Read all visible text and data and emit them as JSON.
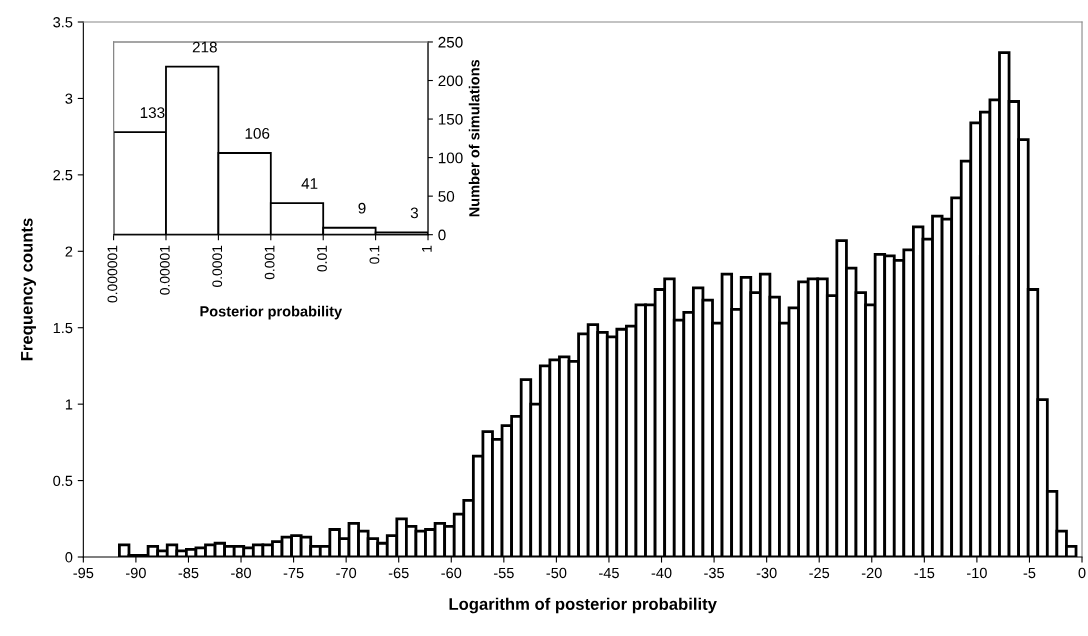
{
  "chart_data": [
    {
      "type": "histogram",
      "xlabel": "Logarithm of posterior probability",
      "ylabel": "Frequency counts",
      "bins": [
        -91.57,
        -90.66,
        -89.75,
        -88.84,
        -87.93,
        -87.02,
        -86.11,
        -85.2,
        -84.29,
        -83.38,
        -82.47,
        -81.56,
        -80.65,
        -79.74,
        -78.83,
        -77.92,
        -77.01,
        -76.1,
        -75.19,
        -74.28,
        -73.37,
        -72.46,
        -71.55,
        -70.64,
        -69.73,
        -68.82,
        -67.91,
        -67,
        -66.09,
        -65.18,
        -64.27,
        -63.36,
        -62.45,
        -61.54,
        -60.63,
        -59.72,
        -58.81,
        -57.9,
        -56.99,
        -56.08,
        -55.17,
        -54.26,
        -53.35,
        -52.44,
        -51.53,
        -50.62,
        -49.71,
        -48.8,
        -47.89,
        -46.98,
        -46.07,
        -45.16,
        -44.25,
        -43.34,
        -42.43,
        -41.52,
        -40.61,
        -39.7,
        -38.79,
        -37.88,
        -36.97,
        -36.06,
        -35.15,
        -34.24,
        -33.33,
        -32.42,
        -31.51,
        -30.6,
        -29.69,
        -28.78,
        -27.87,
        -26.96,
        -26.05,
        -25.14,
        -24.23,
        -23.32,
        -22.41,
        -21.5,
        -20.59,
        -19.68,
        -18.77,
        -17.86,
        -16.95,
        -16.04,
        -15.13,
        -14.22,
        -13.31,
        -12.4,
        -11.49,
        -10.58,
        -9.67,
        -8.76,
        -7.85,
        -6.94,
        -6.03,
        -5.12,
        -4.21,
        -3.3,
        -2.39,
        -1.48,
        -0.57
      ],
      "values": [
        0.08,
        0.01,
        0.01,
        0.07,
        0.04,
        0.08,
        0.04,
        0.05,
        0.06,
        0.08,
        0.09,
        0.07,
        0.07,
        0.06,
        0.08,
        0.08,
        0.1,
        0.13,
        0.14,
        0.13,
        0.07,
        0.07,
        0.18,
        0.12,
        0.22,
        0.17,
        0.12,
        0.09,
        0.14,
        0.25,
        0.2,
        0.17,
        0.18,
        0.22,
        0.2,
        0.28,
        0.37,
        0.66,
        0.82,
        0.77,
        0.86,
        0.92,
        1.16,
        1.0,
        1.25,
        1.29,
        1.31,
        1.28,
        1.46,
        1.52,
        1.47,
        1.44,
        1.49,
        1.51,
        1.65,
        1.65,
        1.75,
        1.82,
        1.55,
        1.6,
        1.76,
        1.68,
        1.53,
        1.85,
        1.62,
        1.83,
        1.73,
        1.85,
        1.7,
        1.53,
        1.63,
        1.8,
        1.82,
        1.82,
        1.71,
        2.07,
        1.89,
        1.73,
        1.65,
        1.98,
        1.97,
        1.94,
        2.01,
        2.16,
        2.08,
        2.23,
        2.21,
        2.35,
        2.59,
        2.84,
        2.91,
        2.99,
        3.3,
        2.98,
        2.73,
        1.75,
        1.03,
        0.43,
        0.17,
        0.07
      ],
      "color": "#ffffff",
      "xlim": [
        -95,
        0
      ],
      "xticks": [
        -95,
        -90,
        -85,
        -80,
        -75,
        -70,
        -65,
        -60,
        -55,
        -50,
        -45,
        -40,
        -35,
        -30,
        -25,
        -20,
        -15,
        -10,
        -5,
        0
      ],
      "ylim": [
        0,
        3.5
      ],
      "yticks": [
        0,
        0.5,
        1,
        1.5,
        2,
        2.5,
        3,
        3.5
      ],
      "grid": false
    },
    {
      "type": "histogram",
      "xlabel": "Posterior probability",
      "y2label": "Number of simulations",
      "bins": [
        1e-06,
        1e-05,
        0.0001,
        0.001,
        0.01,
        0.1,
        1
      ],
      "series": [
        {
          "values": [
            133,
            218,
            106,
            41,
            9,
            3
          ],
          "color": "#ffffff",
          "axis": "y2"
        }
      ],
      "data_labels": true,
      "log": "x",
      "xlim": [
        1e-06,
        1
      ],
      "xticks": [
        {
          "value": 1e-06,
          "label": "0.000001"
        },
        {
          "value": 1e-05,
          "label": "0.00001"
        },
        {
          "value": 0.0001,
          "label": "0.0001"
        },
        {
          "value": 0.001,
          "label": "0.001"
        },
        {
          "value": 0.01,
          "label": "0.01"
        },
        {
          "value": 0.1,
          "label": "0.1"
        },
        {
          "value": 1,
          "label": "1"
        }
      ],
      "y2lim": [
        0,
        250
      ],
      "y2ticks": [
        0,
        50,
        100,
        150,
        200,
        250
      ],
      "grid": false
    }
  ]
}
